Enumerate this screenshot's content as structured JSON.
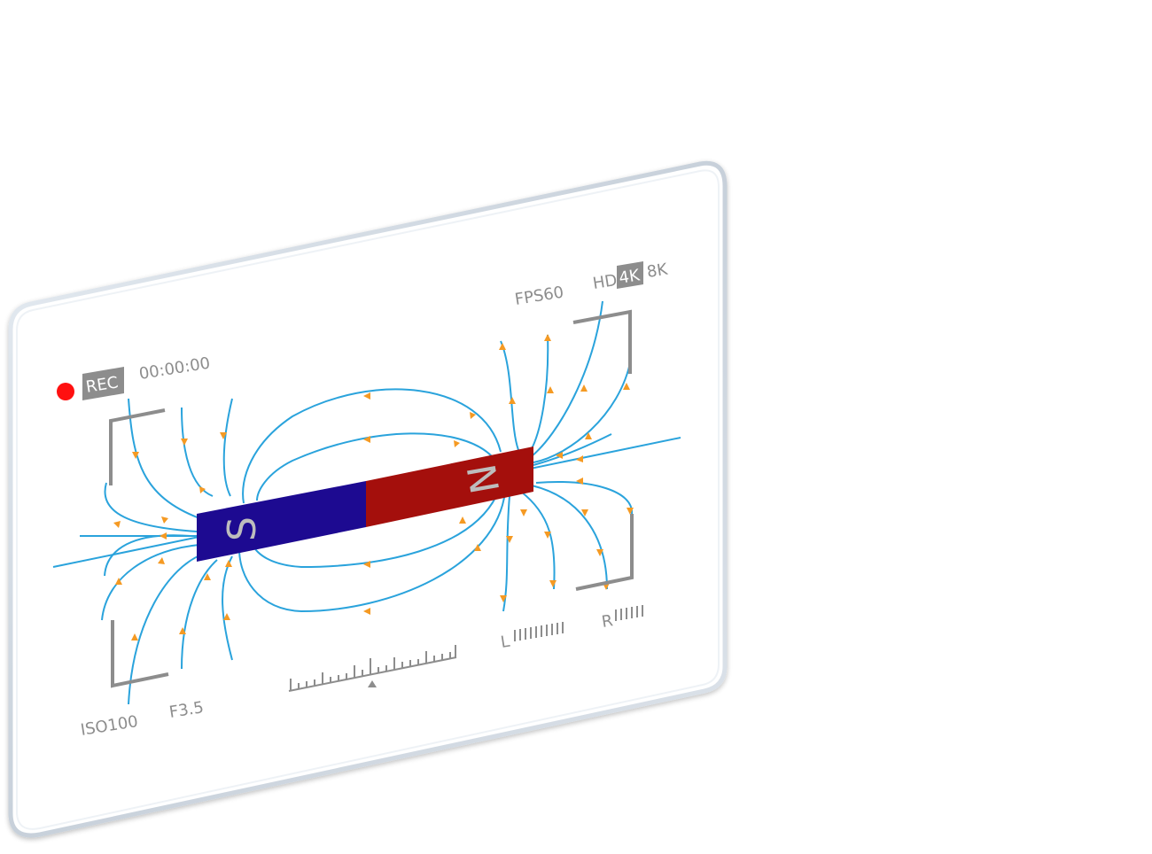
{
  "viewfinder": {
    "rec_label": "REC",
    "timecode": "00:00:00",
    "fps": "FPS60",
    "resolution_options": [
      "HD",
      "4K",
      "8K"
    ],
    "selected_resolution": "4K",
    "iso": "ISO100",
    "aperture": "F3.5",
    "audio_left_label": "L",
    "audio_right_label": "R"
  },
  "magnet": {
    "south_label": "S",
    "north_label": "N"
  },
  "colors": {
    "south_pole": "#1d0a91",
    "north_pole": "#a40f0c",
    "field_line": "#2aa3dc",
    "field_arrow": "#f59a23",
    "hud_gray": "#8d8d8d",
    "rec_dot": "#ff1010"
  }
}
